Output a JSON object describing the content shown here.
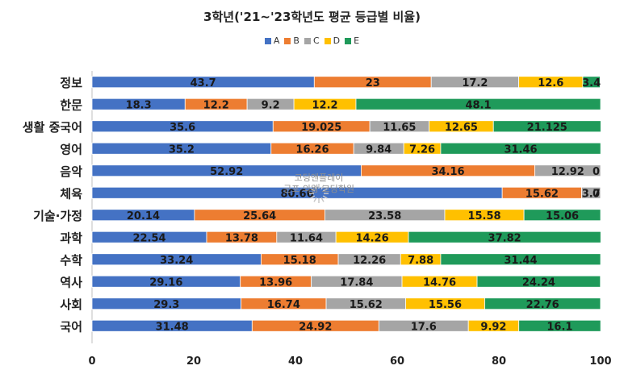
{
  "chart_data": {
    "type": "bar",
    "orientation": "horizontal",
    "stacked": true,
    "title": "3학년('21~'23학년도 평균 등급별 비율)",
    "xlim": [
      0,
      100
    ],
    "x_ticks": [
      "0",
      "20",
      "40",
      "60",
      "80",
      "100"
    ],
    "legend_position": "top",
    "categories": [
      "정보",
      "한문",
      "생활 중국어",
      "영어",
      "음악",
      "체육",
      "기술·가정",
      "과학",
      "수학",
      "역사",
      "사회",
      "국어"
    ],
    "series": [
      {
        "name": "A",
        "color": "#4472c4",
        "values": [
          43.7,
          18.3,
          35.6,
          35.2,
          52.92,
          80.66,
          20.14,
          22.54,
          33.24,
          29.16,
          29.3,
          31.48
        ],
        "labels": [
          "43.7",
          "18.3",
          "35.6",
          "35.2",
          "52.92",
          "80.66",
          "20.14",
          "22.54",
          "33.24",
          "29.16",
          "29.3",
          "31.48"
        ]
      },
      {
        "name": "B",
        "color": "#ed7d31",
        "values": [
          23,
          12.2,
          19.025,
          16.26,
          34.16,
          15.62,
          25.64,
          13.78,
          15.18,
          13.96,
          16.74,
          24.92
        ],
        "labels": [
          "23",
          "12.2",
          "19.025",
          "16.26",
          "34.16",
          "15.62",
          "25.64",
          "13.78",
          "15.18",
          "13.96",
          "16.74",
          "24.92"
        ]
      },
      {
        "name": "C",
        "color": "#a5a5a5",
        "values": [
          17.2,
          9.2,
          11.65,
          9.84,
          12.92,
          3.7,
          23.58,
          11.64,
          12.26,
          17.84,
          15.62,
          17.6
        ],
        "labels": [
          "17.2",
          "9.2",
          "11.65",
          "9.84",
          "12.92",
          "3.7",
          "23.58",
          "11.64",
          "12.26",
          "17.84",
          "15.62",
          "17.6"
        ]
      },
      {
        "name": "D",
        "color": "#ffc000",
        "values": [
          12.6,
          12.2,
          12.65,
          7.26,
          0,
          0,
          15.58,
          14.26,
          7.88,
          14.76,
          15.56,
          9.92
        ],
        "labels": [
          "12.6",
          "12.2",
          "12.65",
          "7.26",
          "0",
          "0",
          "15.58",
          "14.26",
          "7.88",
          "14.76",
          "15.56",
          "9.92"
        ]
      },
      {
        "name": "E",
        "color": "#1f9a5a",
        "values": [
          3.4,
          48.1,
          21.125,
          31.46,
          0,
          0,
          15.06,
          37.82,
          31.44,
          24.24,
          22.76,
          16.1
        ],
        "labels": [
          "3.4",
          "48.1",
          "21.125",
          "31.46",
          "",
          "",
          "15.06",
          "37.82",
          "31.44",
          "24.24",
          "22.76",
          "16.1"
        ]
      }
    ]
  },
  "watermark": {
    "line1": "코딩앤플레이",
    "line2": "군포·의왕 코딩학원"
  }
}
